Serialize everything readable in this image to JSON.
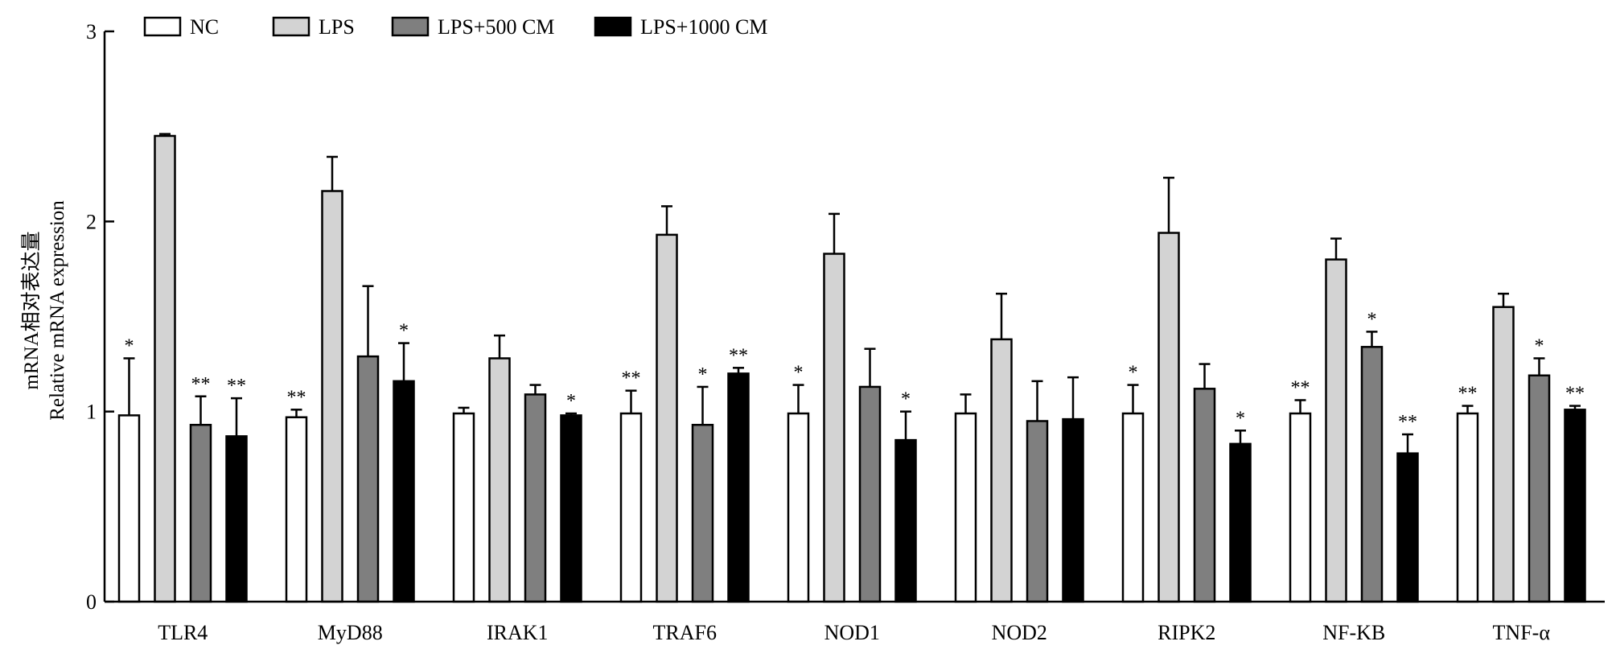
{
  "chart_data": {
    "type": "bar",
    "title": "",
    "ylabel_lines": [
      "mRNA相对表达量",
      "Relative mRNA expression"
    ],
    "xlabel": "",
    "ylim": [
      0,
      3
    ],
    "yticks": [
      "0",
      "1",
      "2",
      "3"
    ],
    "legend_position": "top-left",
    "categories": [
      "TLR4",
      "MyD88",
      "IRAK1",
      "TRAF6",
      "NOD1",
      "NOD2",
      "RIPK2",
      "NF-KB",
      "TNF-α"
    ],
    "series": [
      {
        "name": "NC",
        "color": "#ffffff",
        "values": [
          0.98,
          0.97,
          0.99,
          0.99,
          0.99,
          0.99,
          0.99,
          0.99,
          0.99
        ],
        "errors": [
          0.3,
          0.04,
          0.03,
          0.12,
          0.15,
          0.1,
          0.15,
          0.07,
          0.04
        ],
        "sig": [
          "*",
          "**",
          "",
          "**",
          "*",
          "",
          "*",
          "**",
          "**"
        ]
      },
      {
        "name": "LPS",
        "color": "#d3d3d3",
        "values": [
          2.45,
          2.16,
          1.28,
          1.93,
          1.83,
          1.38,
          1.94,
          1.8,
          1.55
        ],
        "errors": [
          0.01,
          0.18,
          0.12,
          0.15,
          0.21,
          0.24,
          0.29,
          0.11,
          0.07
        ],
        "sig": [
          "",
          "",
          "",
          "",
          "",
          "",
          "",
          "",
          ""
        ]
      },
      {
        "name": "LPS+500 CM",
        "color": "#7f7f7f",
        "values": [
          0.93,
          1.29,
          1.09,
          0.93,
          1.13,
          0.95,
          1.12,
          1.34,
          1.19
        ],
        "errors": [
          0.15,
          0.37,
          0.05,
          0.2,
          0.2,
          0.21,
          0.13,
          0.08,
          0.09
        ],
        "sig": [
          "**",
          "",
          "",
          "*",
          "",
          "",
          "",
          "*",
          "*"
        ]
      },
      {
        "name": "LPS+1000 CM",
        "color": "#000000",
        "values": [
          0.87,
          1.16,
          0.98,
          1.2,
          0.85,
          0.96,
          0.83,
          0.78,
          1.01
        ],
        "errors": [
          0.2,
          0.2,
          0.01,
          0.03,
          0.15,
          0.22,
          0.07,
          0.1,
          0.02
        ],
        "sig": [
          "**",
          "*",
          "*",
          "**",
          "*",
          "",
          "*",
          "**",
          "**"
        ]
      }
    ]
  }
}
